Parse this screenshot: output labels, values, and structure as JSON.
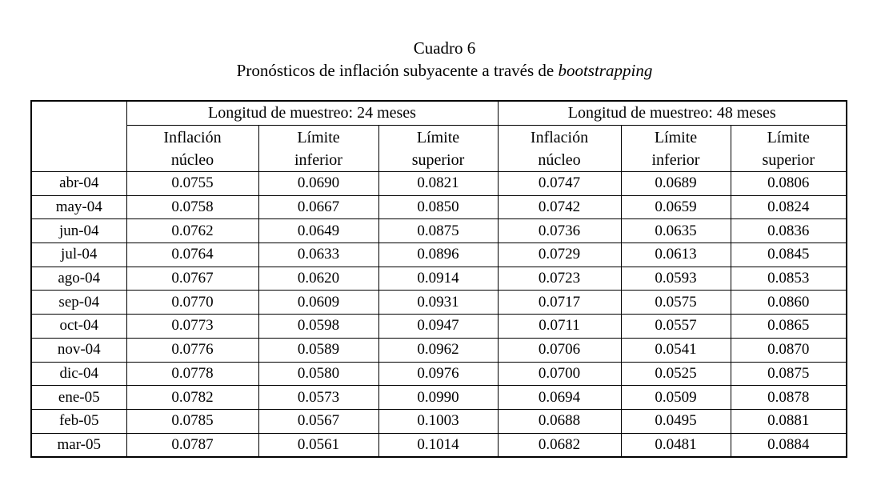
{
  "caption": {
    "number": "Cuadro 6",
    "title_text": "Pronósticos de inflación subyacente a través de ",
    "title_italic": "bootstrapping"
  },
  "table": {
    "group_headers": [
      "Longitud de muestreo: 24 meses",
      "Longitud de muestreo: 48 meses"
    ],
    "sub_headers": [
      {
        "line1": "Inflación",
        "line2": "núcleo"
      },
      {
        "line1": "Límite",
        "line2": "inferior"
      },
      {
        "line1": "Límite",
        "line2": "superior"
      },
      {
        "line1": "Inflación",
        "line2": "núcleo"
      },
      {
        "line1": "Límite",
        "line2": "inferior"
      },
      {
        "line1": "Límite",
        "line2": "superior"
      }
    ],
    "rows": [
      {
        "month": "abr-04",
        "values": [
          "0.0755",
          "0.0690",
          "0.0821",
          "0.0747",
          "0.0689",
          "0.0806"
        ]
      },
      {
        "month": "may-04",
        "values": [
          "0.0758",
          "0.0667",
          "0.0850",
          "0.0742",
          "0.0659",
          "0.0824"
        ]
      },
      {
        "month": "jun-04",
        "values": [
          "0.0762",
          "0.0649",
          "0.0875",
          "0.0736",
          "0.0635",
          "0.0836"
        ]
      },
      {
        "month": "jul-04",
        "values": [
          "0.0764",
          "0.0633",
          "0.0896",
          "0.0729",
          "0.0613",
          "0.0845"
        ]
      },
      {
        "month": "ago-04",
        "values": [
          "0.0767",
          "0.0620",
          "0.0914",
          "0.0723",
          "0.0593",
          "0.0853"
        ]
      },
      {
        "month": "sep-04",
        "values": [
          "0.0770",
          "0.0609",
          "0.0931",
          "0.0717",
          "0.0575",
          "0.0860"
        ]
      },
      {
        "month": "oct-04",
        "values": [
          "0.0773",
          "0.0598",
          "0.0947",
          "0.0711",
          "0.0557",
          "0.0865"
        ]
      },
      {
        "month": "nov-04",
        "values": [
          "0.0776",
          "0.0589",
          "0.0962",
          "0.0706",
          "0.0541",
          "0.0870"
        ]
      },
      {
        "month": "dic-04",
        "values": [
          "0.0778",
          "0.0580",
          "0.0976",
          "0.0700",
          "0.0525",
          "0.0875"
        ]
      },
      {
        "month": "ene-05",
        "values": [
          "0.0782",
          "0.0573",
          "0.0990",
          "0.0694",
          "0.0509",
          "0.0878"
        ]
      },
      {
        "month": "feb-05",
        "values": [
          "0.0785",
          "0.0567",
          "0.1003",
          "0.0688",
          "0.0495",
          "0.0881"
        ]
      },
      {
        "month": "mar-05",
        "values": [
          "0.0787",
          "0.0561",
          "0.1014",
          "0.0682",
          "0.0481",
          "0.0884"
        ]
      }
    ],
    "colors": {
      "border": "#000000",
      "text": "#000000",
      "background": "#ffffff"
    }
  }
}
